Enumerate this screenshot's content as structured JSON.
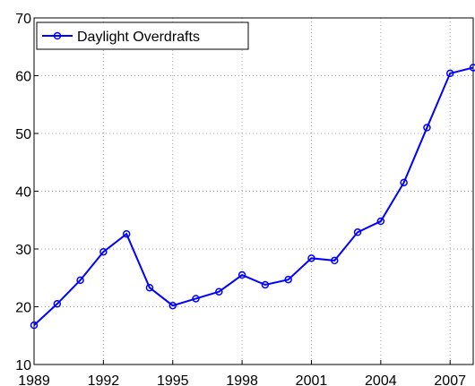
{
  "chart_data": {
    "type": "line",
    "x": [
      1989,
      1990,
      1991,
      1992,
      1993,
      1994,
      1995,
      1996,
      1997,
      1998,
      1999,
      2000,
      2001,
      2002,
      2003,
      2004,
      2005,
      2006,
      2007,
      2008
    ],
    "series": [
      {
        "name": "Daylight Overdrafts",
        "color": "#0000ff",
        "values": [
          16.8,
          20.5,
          24.6,
          29.5,
          32.6,
          23.3,
          20.2,
          21.4,
          22.6,
          25.5,
          23.8,
          24.7,
          28.4,
          28.0,
          32.9,
          34.8,
          41.5,
          51.0,
          60.4,
          61.4
        ]
      }
    ],
    "xlim": [
      1989,
      2008
    ],
    "xticks": [
      1989,
      1992,
      1995,
      1998,
      2001,
      2004,
      2007
    ],
    "ylim": [
      10,
      70
    ],
    "yticks": [
      10,
      20,
      30,
      40,
      50,
      60,
      70
    ],
    "grid": true,
    "legend": "upper-left"
  }
}
